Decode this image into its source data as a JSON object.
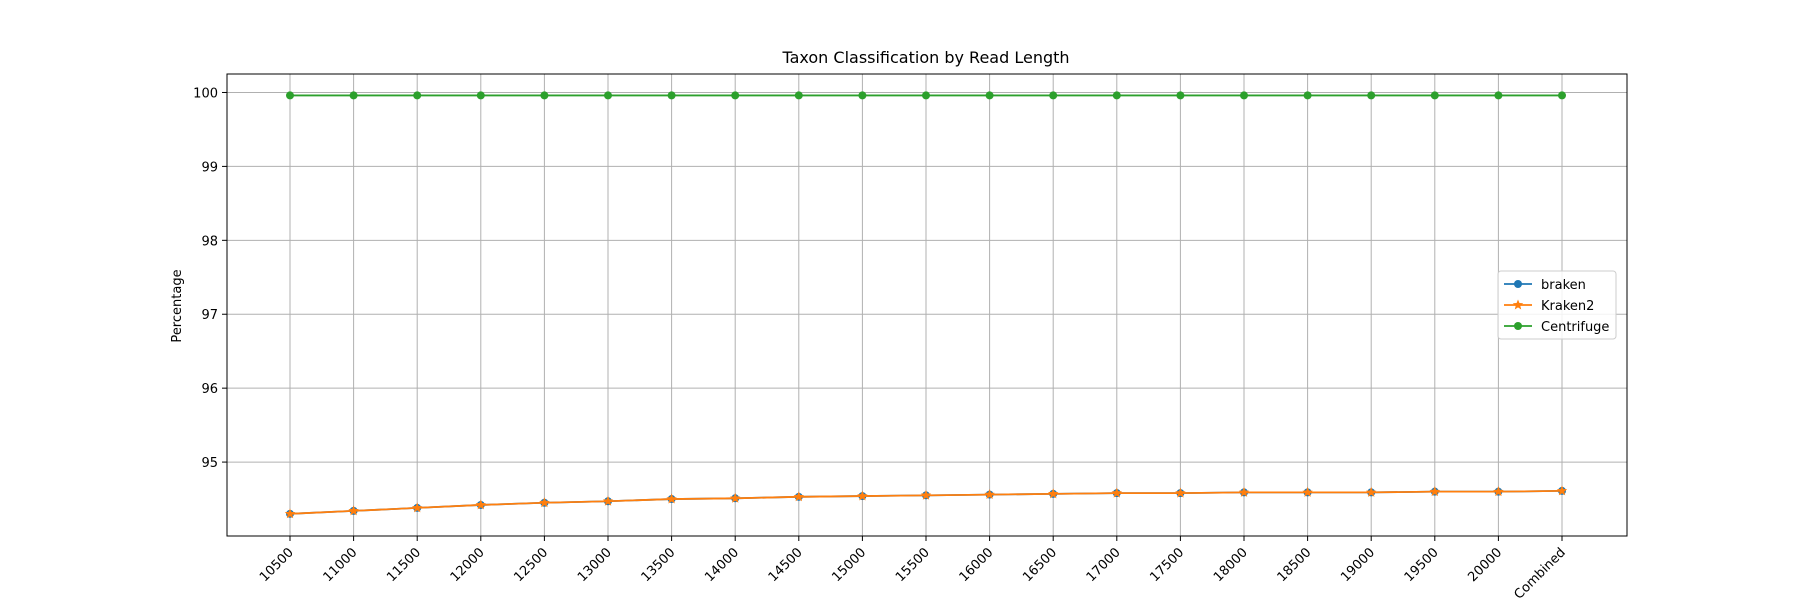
{
  "chart_data": {
    "type": "line",
    "title": "Taxon Classification by Read Length",
    "xlabel": "",
    "ylabel": "Percentage",
    "categories": [
      "10500",
      "11000",
      "11500",
      "12000",
      "12500",
      "13000",
      "13500",
      "14000",
      "14500",
      "15000",
      "15500",
      "16000",
      "16500",
      "17000",
      "17500",
      "18000",
      "18500",
      "19000",
      "19500",
      "20000",
      "Combined"
    ],
    "ylim": [
      94.0,
      100.25
    ],
    "yticks": [
      95,
      96,
      97,
      98,
      99,
      100
    ],
    "grid": true,
    "legend_position": "center-right",
    "series": [
      {
        "name": "braken",
        "color": "#1f77b4",
        "marker": "circle",
        "values": [
          94.3,
          94.34,
          94.38,
          94.42,
          94.45,
          94.47,
          94.5,
          94.51,
          94.53,
          94.54,
          94.55,
          94.56,
          94.57,
          94.58,
          94.58,
          94.59,
          94.59,
          94.59,
          94.6,
          94.6,
          94.61
        ]
      },
      {
        "name": "Kraken2",
        "color": "#ff7f0e",
        "marker": "star",
        "values": [
          94.3,
          94.34,
          94.38,
          94.42,
          94.45,
          94.47,
          94.5,
          94.51,
          94.53,
          94.54,
          94.55,
          94.56,
          94.57,
          94.58,
          94.58,
          94.59,
          94.59,
          94.59,
          94.6,
          94.6,
          94.61
        ]
      },
      {
        "name": "Centrifuge",
        "color": "#2ca02c",
        "marker": "circle",
        "values": [
          99.96,
          99.96,
          99.96,
          99.96,
          99.96,
          99.96,
          99.96,
          99.96,
          99.96,
          99.96,
          99.96,
          99.96,
          99.96,
          99.96,
          99.96,
          99.96,
          99.96,
          99.96,
          99.96,
          99.96,
          99.96
        ]
      }
    ]
  }
}
